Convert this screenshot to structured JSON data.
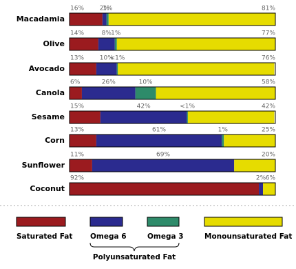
{
  "chart_data": {
    "type": "stacked-bar",
    "orientation": "horizontal",
    "categories": [
      "Macadamia",
      "Olive",
      "Avocado",
      "Canola",
      "Sesame",
      "Corn",
      "Sunflower",
      "Coconut"
    ],
    "xlim": [
      0,
      100
    ],
    "series": [
      {
        "name": "Saturated Fat",
        "color": "#9b1b1f",
        "values": [
          16,
          14,
          13,
          6,
          15,
          13,
          11,
          92
        ],
        "value_labels": [
          "16%",
          "14%",
          "13%",
          "6%",
          "15%",
          "13%",
          "11%",
          "92%"
        ]
      },
      {
        "name": "Omega 6",
        "color": "#2b2b8f",
        "values": [
          2,
          8,
          10,
          26,
          42,
          61,
          69,
          2
        ],
        "value_labels": [
          "2%",
          "8%",
          "10%",
          "26%",
          "42%",
          "61%",
          "69%",
          "2%"
        ]
      },
      {
        "name": "Omega 3",
        "color": "#2e8b6a",
        "values": [
          1,
          1,
          0.5,
          10,
          0.5,
          1,
          0,
          0
        ],
        "value_labels": [
          "1%",
          "1%",
          "<1%",
          "10%",
          "<1%",
          "1%",
          null,
          null
        ]
      },
      {
        "name": "Monounsaturated Fat",
        "color": "#e6dc00",
        "values": [
          81,
          77,
          76,
          58,
          42,
          25,
          20,
          6
        ],
        "value_labels": [
          "81%",
          "77%",
          "76%",
          "58%",
          "42%",
          "25%",
          "20%",
          "6%"
        ]
      }
    ],
    "legend_group": {
      "label": "Polyunsaturated Fat",
      "series": [
        1,
        2
      ]
    }
  }
}
